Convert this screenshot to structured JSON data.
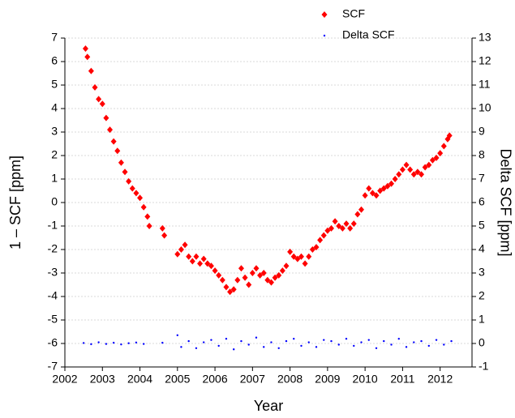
{
  "chart_data": {
    "type": "scatter",
    "xlabel": "Year",
    "ylabel": "1 – SCF [ppm]",
    "y2label": "Delta SCF [ppm]",
    "xlim": [
      2002,
      2012.85
    ],
    "xticks": [
      2002,
      2003,
      2004,
      2005,
      2006,
      2007,
      2008,
      2009,
      2010,
      2011,
      2012
    ],
    "ylim": [
      -7,
      7
    ],
    "yticks": [
      -7,
      -6,
      -5,
      -4,
      -3,
      -2,
      -1,
      0,
      1,
      2,
      3,
      4,
      5,
      6,
      7
    ],
    "y2lim": [
      -1,
      13
    ],
    "y2ticks": [
      -1,
      0,
      1,
      2,
      3,
      4,
      5,
      6,
      7,
      8,
      9,
      10,
      11,
      12,
      13
    ],
    "grid": true,
    "legend": "top",
    "series": [
      {
        "name": "SCF",
        "color": "#ff0000",
        "marker": "diamond",
        "x": [
          2002.55,
          2002.6,
          2002.7,
          2002.8,
          2002.9,
          2003.0,
          2003.1,
          2003.2,
          2003.3,
          2003.4,
          2003.5,
          2003.6,
          2003.7,
          2003.8,
          2003.9,
          2004.0,
          2004.1,
          2004.2,
          2004.25,
          2004.6,
          2004.65,
          2005.0,
          2005.1,
          2005.2,
          2005.3,
          2005.4,
          2005.5,
          2005.6,
          2005.7,
          2005.8,
          2005.9,
          2006.0,
          2006.1,
          2006.2,
          2006.3,
          2006.4,
          2006.5,
          2006.6,
          2006.7,
          2006.8,
          2006.9,
          2007.0,
          2007.1,
          2007.2,
          2007.3,
          2007.4,
          2007.5,
          2007.6,
          2007.7,
          2007.8,
          2007.9,
          2008.0,
          2008.1,
          2008.2,
          2008.3,
          2008.4,
          2008.5,
          2008.6,
          2008.7,
          2008.8,
          2008.9,
          2009.0,
          2009.1,
          2009.2,
          2009.3,
          2009.4,
          2009.5,
          2009.6,
          2009.7,
          2009.8,
          2009.9,
          2010.0,
          2010.1,
          2010.2,
          2010.3,
          2010.4,
          2010.5,
          2010.6,
          2010.7,
          2010.8,
          2010.9,
          2011.0,
          2011.1,
          2011.2,
          2011.3,
          2011.4,
          2011.5,
          2011.6,
          2011.7,
          2011.8,
          2011.9,
          2012.0,
          2012.1,
          2012.2,
          2012.25
        ],
        "values": [
          6.55,
          6.2,
          5.6,
          4.9,
          4.4,
          4.2,
          3.6,
          3.1,
          2.6,
          2.2,
          1.7,
          1.3,
          0.9,
          0.6,
          0.4,
          0.2,
          -0.2,
          -0.6,
          -1.0,
          -1.1,
          -1.4,
          -2.2,
          -2.0,
          -1.8,
          -2.3,
          -2.5,
          -2.3,
          -2.6,
          -2.4,
          -2.6,
          -2.7,
          -2.9,
          -3.1,
          -3.3,
          -3.6,
          -3.8,
          -3.7,
          -3.3,
          -2.8,
          -3.2,
          -3.5,
          -3.0,
          -2.8,
          -3.1,
          -3.0,
          -3.3,
          -3.4,
          -3.2,
          -3.1,
          -2.9,
          -2.7,
          -2.1,
          -2.3,
          -2.4,
          -2.3,
          -2.6,
          -2.3,
          -2.0,
          -1.9,
          -1.6,
          -1.4,
          -1.2,
          -1.1,
          -0.8,
          -1.0,
          -1.1,
          -0.9,
          -1.1,
          -0.9,
          -0.5,
          -0.3,
          0.3,
          0.6,
          0.4,
          0.3,
          0.5,
          0.6,
          0.7,
          0.8,
          1.0,
          1.2,
          1.4,
          1.6,
          1.4,
          1.2,
          1.3,
          1.2,
          1.5,
          1.6,
          1.8,
          1.9,
          2.1,
          2.4,
          2.7,
          2.85
        ]
      },
      {
        "name": "Delta SCF",
        "color": "#0000ff",
        "marker": "dot",
        "axis": "y2",
        "x": [
          2002.5,
          2002.7,
          2002.9,
          2003.1,
          2003.3,
          2003.5,
          2003.7,
          2003.9,
          2004.1,
          2004.6,
          2005.0,
          2005.1,
          2005.3,
          2005.5,
          2005.7,
          2005.9,
          2006.1,
          2006.3,
          2006.5,
          2006.7,
          2006.9,
          2007.1,
          2007.3,
          2007.5,
          2007.7,
          2007.9,
          2008.1,
          2008.3,
          2008.5,
          2008.7,
          2008.9,
          2009.1,
          2009.3,
          2009.5,
          2009.7,
          2009.9,
          2010.1,
          2010.3,
          2010.5,
          2010.7,
          2010.9,
          2011.1,
          2011.3,
          2011.5,
          2011.7,
          2011.9,
          2012.1,
          2012.3
        ],
        "values": [
          0.02,
          -0.03,
          0.05,
          -0.02,
          0.03,
          -0.04,
          0.01,
          0.04,
          -0.02,
          0.03,
          0.35,
          -0.15,
          0.1,
          -0.2,
          0.05,
          0.15,
          -0.1,
          0.2,
          -0.25,
          0.1,
          -0.05,
          0.25,
          -0.15,
          0.05,
          -0.2,
          0.1,
          0.2,
          -0.1,
          0.05,
          -0.15,
          0.15,
          0.1,
          -0.05,
          0.2,
          -0.1,
          0.05,
          0.15,
          -0.2,
          0.1,
          -0.05,
          0.2,
          -0.15,
          0.05,
          0.1,
          -0.1,
          0.15,
          -0.05,
          0.1
        ]
      }
    ]
  }
}
